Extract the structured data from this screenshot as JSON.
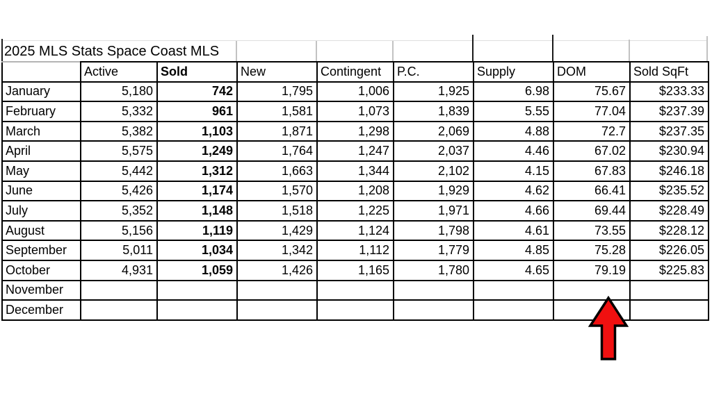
{
  "sheet_title": "2025 MLS Stats Space Coast MLS",
  "chart_data": {
    "type": "table",
    "title": "2025 MLS Stats Space Coast MLS",
    "columns": [
      "",
      "Active",
      "Sold",
      "New",
      "Contingent",
      "P.C.",
      "Supply",
      "DOM",
      "Sold SqFt"
    ],
    "rows": [
      [
        "January",
        "5,180",
        "742",
        "1,795",
        "1,006",
        "1,925",
        "6.98",
        "75.67",
        "$233.33"
      ],
      [
        "February",
        "5,332",
        "961",
        "1,581",
        "1,073",
        "1,839",
        "5.55",
        "77.04",
        "$237.39"
      ],
      [
        "March",
        "5,382",
        "1,103",
        "1,871",
        "1,298",
        "2,069",
        "4.88",
        "72.7",
        "$237.35"
      ],
      [
        "April",
        "5,575",
        "1,249",
        "1,764",
        "1,247",
        "2,037",
        "4.46",
        "67.02",
        "$230.94"
      ],
      [
        "May",
        "5,442",
        "1,312",
        "1,663",
        "1,344",
        "2,102",
        "4.15",
        "67.83",
        "$246.18"
      ],
      [
        "June",
        "5,426",
        "1,174",
        "1,570",
        "1,208",
        "1,929",
        "4.62",
        "66.41",
        "$235.52"
      ],
      [
        "July",
        "5,352",
        "1,148",
        "1,518",
        "1,225",
        "1,971",
        "4.66",
        "69.44",
        "$228.49"
      ],
      [
        "August",
        "5,156",
        "1,119",
        "1,429",
        "1,124",
        "1,798",
        "4.61",
        "73.55",
        "$228.12"
      ],
      [
        "September",
        "5,011",
        "1,034",
        "1,342",
        "1,112",
        "1,779",
        "4.85",
        "75.28",
        "$226.05"
      ],
      [
        "October",
        "4,931",
        "1,059",
        "1,426",
        "1,165",
        "1,780",
        "4.65",
        "79.19",
        "$225.83"
      ],
      [
        "November",
        "",
        "",
        "",
        "",
        "",
        "",
        "",
        ""
      ],
      [
        "December",
        "",
        "",
        "",
        "",
        "",
        "",
        "",
        ""
      ]
    ]
  },
  "annotation": {
    "arrow_direction": "up",
    "arrow_fill": "#f01010",
    "arrow_outline": "#000000",
    "points_to_column": "DOM",
    "points_to_value": "79.19"
  }
}
